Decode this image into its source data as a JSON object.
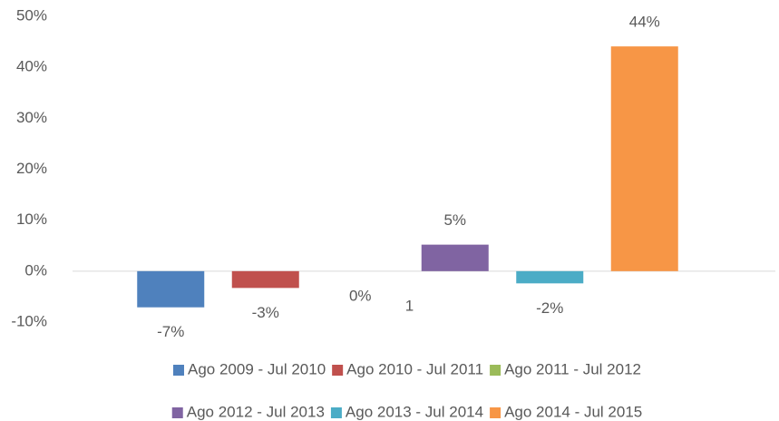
{
  "chart_data": {
    "type": "bar",
    "categories": [
      "1"
    ],
    "series": [
      {
        "name": "Ago 2009 - Jul 2010",
        "color": "#4f81bd",
        "values": [
          -7.1
        ],
        "value_labels": [
          "-7%"
        ]
      },
      {
        "name": "Ago 2010 - Jul 2011",
        "color": "#c0504d",
        "values": [
          -3.3
        ],
        "value_labels": [
          "-3%"
        ]
      },
      {
        "name": "Ago 2011 - Jul 2012",
        "color": "#9bbb59",
        "values": [
          0
        ],
        "value_labels": [
          "0%"
        ]
      },
      {
        "name": "Ago 2012 - Jul 2013",
        "color": "#8064a2",
        "values": [
          5.2
        ],
        "value_labels": [
          "5%"
        ]
      },
      {
        "name": "Ago 2013 - Jul 2014",
        "color": "#4bacc6",
        "values": [
          -2.4
        ],
        "value_labels": [
          "-2%"
        ]
      },
      {
        "name": "Ago 2014 - Jul 2015",
        "color": "#f79646",
        "values": [
          44.1
        ],
        "value_labels": [
          "44%"
        ]
      }
    ],
    "ylim": [
      -10,
      50
    ],
    "yticks": [
      {
        "value": -10,
        "label": "-10%"
      },
      {
        "value": 0,
        "label": "0%"
      },
      {
        "value": 10,
        "label": "10%"
      },
      {
        "value": 20,
        "label": "20%"
      },
      {
        "value": 30,
        "label": "30%"
      },
      {
        "value": 40,
        "label": "40%"
      },
      {
        "value": 50,
        "label": "50%"
      }
    ],
    "legend": "bottom"
  }
}
